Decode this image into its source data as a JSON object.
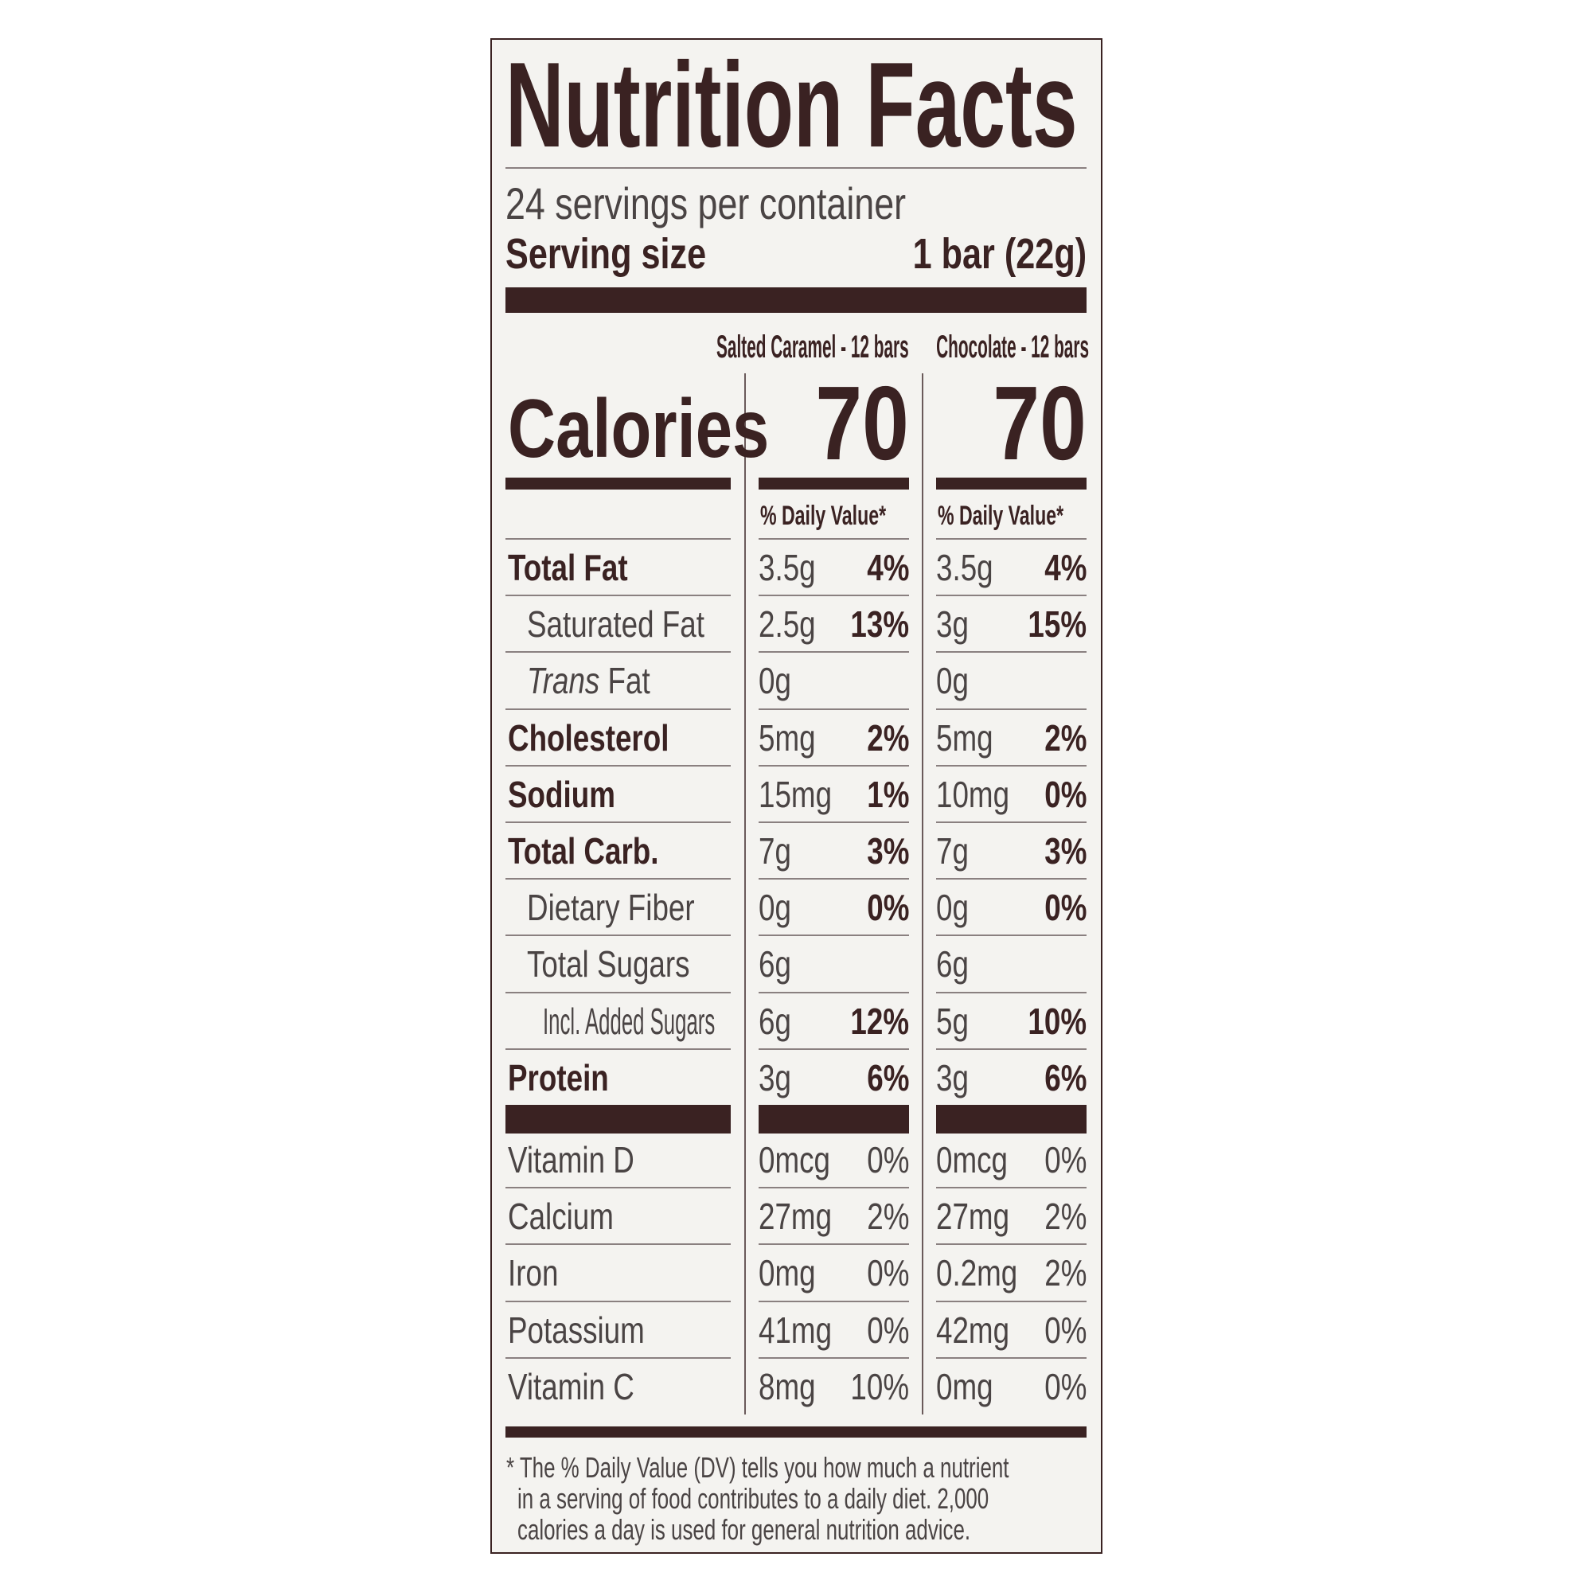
{
  "title": "Nutrition Facts",
  "servings_per_container": "24 servings per container",
  "serving_size": {
    "label": "Serving size",
    "value": "1 bar (22g)"
  },
  "columns": [
    {
      "header": "Salted Caramel - 12 bars",
      "calories": "70",
      "dv_label": "% Daily Value*"
    },
    {
      "header": "Chocolate - 12 bars",
      "calories": "70",
      "dv_label": "% Daily Value*"
    }
  ],
  "calories_label": "Calories",
  "nutrients": [
    {
      "label": "Total Fat",
      "bold": true,
      "indent": 0,
      "values": [
        [
          "3.5g",
          "4%"
        ],
        [
          "3.5g",
          "4%"
        ]
      ]
    },
    {
      "label": "Saturated Fat",
      "bold": false,
      "indent": 1,
      "values": [
        [
          "2.5g",
          "13%"
        ],
        [
          "3g",
          "15%"
        ]
      ]
    },
    {
      "label": "Trans Fat",
      "italic_prefix": "Trans",
      "label_rest": " Fat",
      "bold": false,
      "indent": 1,
      "values": [
        [
          "0g",
          ""
        ],
        [
          "0g",
          ""
        ]
      ]
    },
    {
      "label": "Cholesterol",
      "bold": true,
      "indent": 0,
      "values": [
        [
          "5mg",
          "2%"
        ],
        [
          "5mg",
          "2%"
        ]
      ]
    },
    {
      "label": "Sodium",
      "bold": true,
      "indent": 0,
      "values": [
        [
          "15mg",
          "1%"
        ],
        [
          "10mg",
          "0%"
        ]
      ]
    },
    {
      "label": "Total Carb.",
      "bold": true,
      "indent": 0,
      "values": [
        [
          "7g",
          "3%"
        ],
        [
          "7g",
          "3%"
        ]
      ]
    },
    {
      "label": "Dietary Fiber",
      "bold": false,
      "indent": 1,
      "values": [
        [
          "0g",
          "0%"
        ],
        [
          "0g",
          "0%"
        ]
      ]
    },
    {
      "label": "Total Sugars",
      "bold": false,
      "indent": 1,
      "values": [
        [
          "6g",
          ""
        ],
        [
          "6g",
          ""
        ]
      ]
    },
    {
      "label": "Incl. Added Sugars",
      "bold": false,
      "indent": 2,
      "values": [
        [
          "6g",
          "12%"
        ],
        [
          "5g",
          "10%"
        ]
      ]
    },
    {
      "label": "Protein",
      "bold": true,
      "indent": 0,
      "values": [
        [
          "3g",
          "6%"
        ],
        [
          "3g",
          "6%"
        ]
      ]
    }
  ],
  "vitamins": [
    {
      "label": "Vitamin D",
      "values": [
        [
          "0mcg",
          "0%"
        ],
        [
          "0mcg",
          "0%"
        ]
      ]
    },
    {
      "label": "Calcium",
      "values": [
        [
          "27mg",
          "2%"
        ],
        [
          "27mg",
          "2%"
        ]
      ]
    },
    {
      "label": "Iron",
      "values": [
        [
          "0mg",
          "0%"
        ],
        [
          "0.2mg",
          "2%"
        ]
      ]
    },
    {
      "label": "Potassium",
      "values": [
        [
          "41mg",
          "0%"
        ],
        [
          "42mg",
          "0%"
        ]
      ]
    },
    {
      "label": "Vitamin C",
      "values": [
        [
          "8mg",
          "10%"
        ],
        [
          "0mg",
          "0%"
        ]
      ]
    }
  ],
  "footnote": [
    "* The % Daily Value (DV) tells you how much a nutrient",
    "  in a serving of food contributes to a daily diet. 2,000",
    "  calories a day is used for general nutrition advice."
  ],
  "colors": {
    "ink": "#3a2222",
    "text": "#4a4444",
    "background": "#f4f3f0"
  }
}
